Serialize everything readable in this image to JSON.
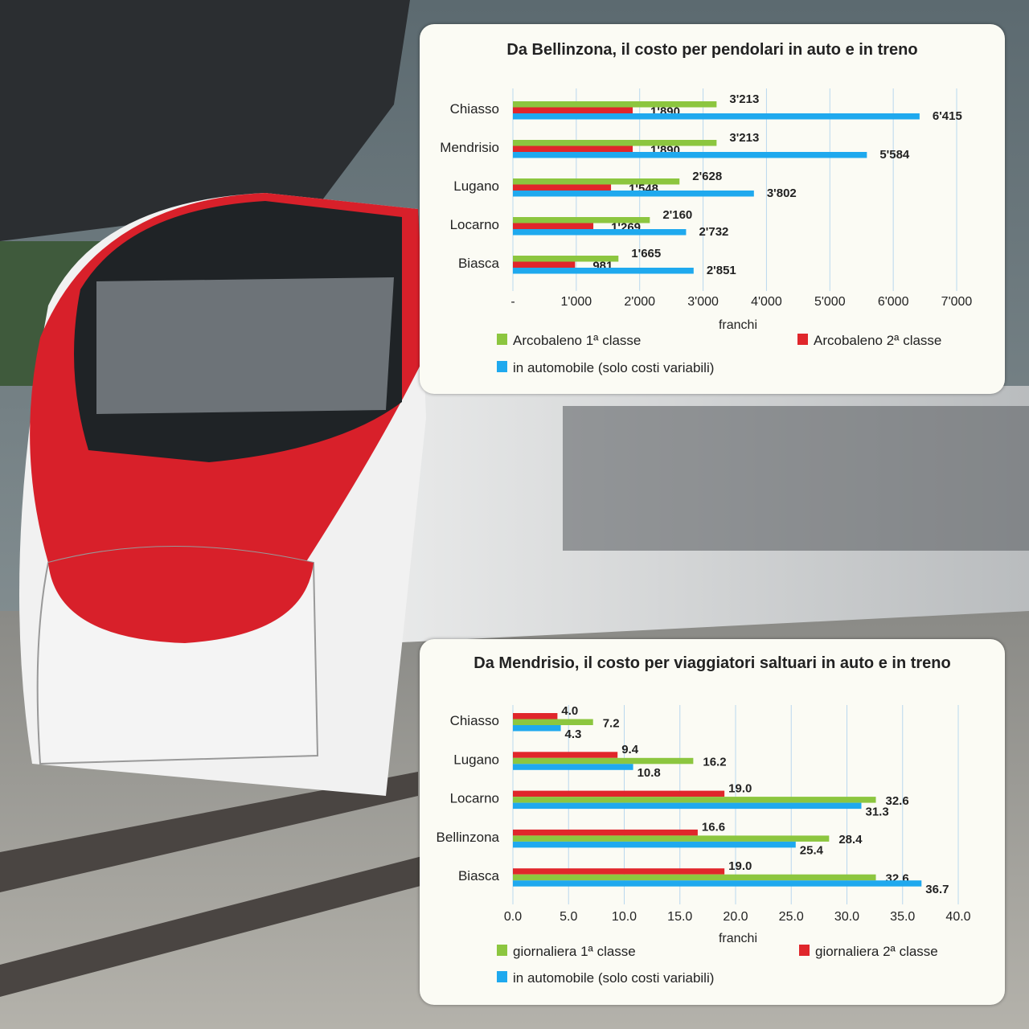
{
  "chart_data": [
    {
      "type": "bar",
      "orientation": "horizontal",
      "title": "Da Bellinzona, il costo per pendolari in auto e in treno",
      "xlabel": "franchi",
      "categories": [
        "Chiasso",
        "Mendrisio",
        "Lugano",
        "Locarno",
        "Biasca"
      ],
      "xlim": [
        0,
        7000
      ],
      "ticks": [
        0,
        1000,
        2000,
        3000,
        4000,
        5000,
        6000,
        7000
      ],
      "tick_labels": [
        "-",
        "1'000",
        "2'000",
        "3'000",
        "4'000",
        "5'000",
        "6'000",
        "7'000"
      ],
      "grid": true,
      "series": [
        {
          "name": "Arcobaleno 1ª classe",
          "color": "#8cc63f",
          "values": [
            3213,
            3213,
            2628,
            2160,
            1665
          ],
          "labels": [
            "3'213",
            "3'213",
            "2'628",
            "2'160",
            "1'665"
          ]
        },
        {
          "name": "Arcobaleno 2ª classe",
          "color": "#e0262b",
          "values": [
            1890,
            1890,
            1548,
            1269,
            981
          ],
          "labels": [
            "1'890",
            "1'890",
            "1'548",
            "1'269",
            "981"
          ]
        },
        {
          "name": "in automobile (solo costi variabili)",
          "color": "#1fa9ee",
          "values": [
            6415,
            5584,
            3802,
            2732,
            2851
          ],
          "labels": [
            "6'415",
            "5'584",
            "3'802",
            "2'732",
            "2'851"
          ]
        }
      ],
      "legend_placement": "bottom"
    },
    {
      "type": "bar",
      "orientation": "horizontal",
      "title": "Da Mendrisio, il costo per viaggiatori saltuari in auto e in treno",
      "xlabel": "franchi",
      "categories": [
        "Chiasso",
        "Lugano",
        "Locarno",
        "Bellinzona",
        "Biasca"
      ],
      "xlim": [
        0,
        40
      ],
      "ticks": [
        0,
        5,
        10,
        15,
        20,
        25,
        30,
        35,
        40
      ],
      "tick_labels": [
        "0.0",
        "5.0",
        "10.0",
        "15.0",
        "20.0",
        "25.0",
        "30.0",
        "35.0",
        "40.0"
      ],
      "grid": true,
      "series": [
        {
          "name": "giornaliera 2ª classe",
          "color": "#e0262b",
          "values": [
            4.0,
            9.4,
            19.0,
            16.6,
            19.0
          ],
          "labels": [
            "4.0",
            "9.4",
            "19.0",
            "16.6",
            "19.0"
          ]
        },
        {
          "name": "giornaliera 1ª classe",
          "color": "#8cc63f",
          "values": [
            7.2,
            16.2,
            32.6,
            28.4,
            32.6
          ],
          "labels": [
            "7.2",
            "16.2",
            "32.6",
            "28.4",
            "32.6"
          ]
        },
        {
          "name": "in automobile (solo costi variabili)",
          "color": "#1fa9ee",
          "values": [
            4.3,
            10.8,
            31.3,
            25.4,
            36.7
          ],
          "labels": [
            "4.3",
            "10.8",
            "31.3",
            "25.4",
            "36.7"
          ]
        }
      ],
      "legend_order": [
        "giornaliera 1ª classe",
        "giornaliera 2ª classe",
        "in automobile (solo costi variabili)"
      ],
      "legend_placement": "bottom"
    }
  ]
}
